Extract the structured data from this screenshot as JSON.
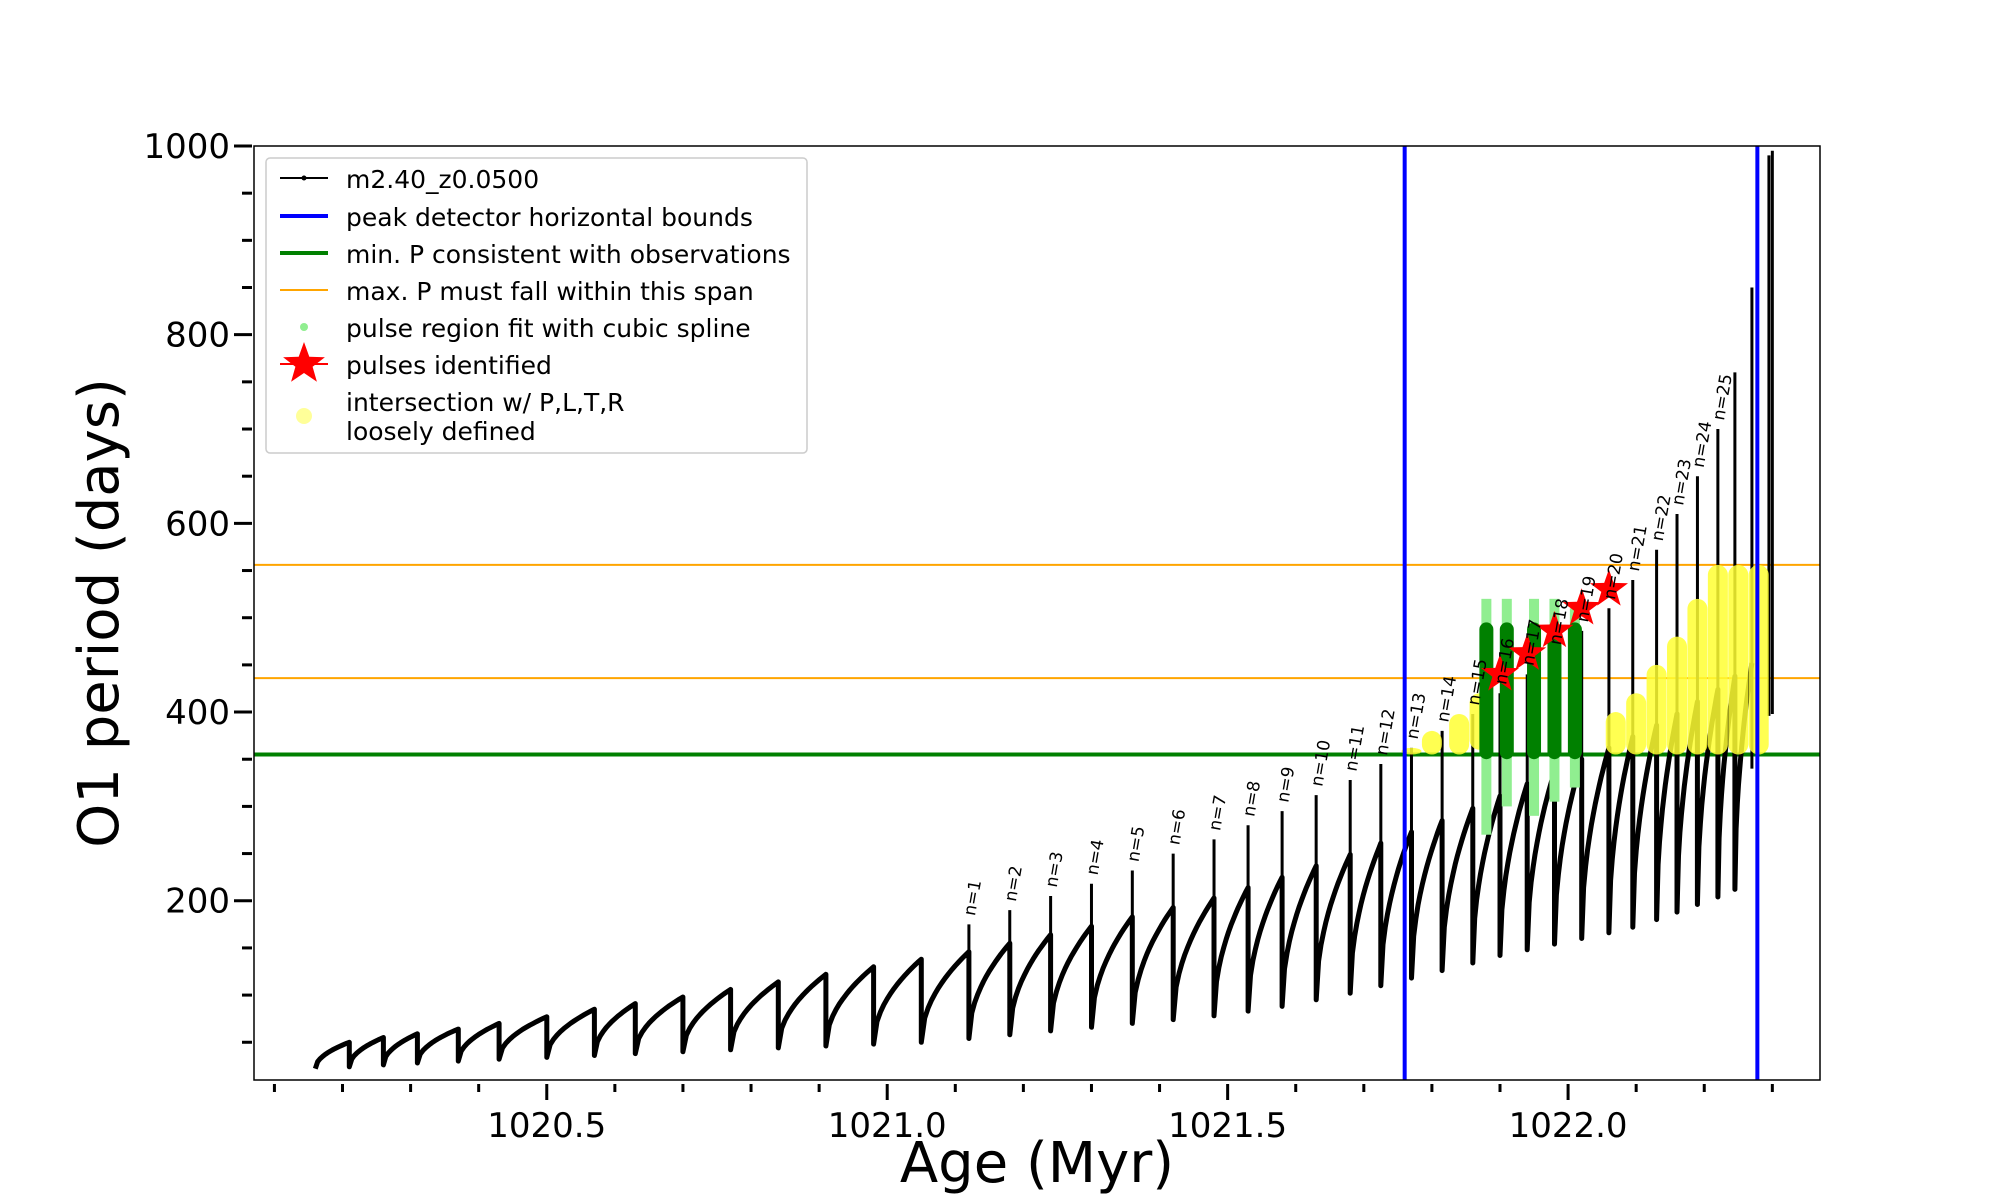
{
  "chart_data": {
    "type": "line",
    "xlabel": "Age (Myr)",
    "ylabel": "O1 period (days)",
    "xlim": [
      1020.07,
      1022.37
    ],
    "ylim": [
      10,
      1000
    ],
    "x_major_ticks": [
      1020.5,
      1021.0,
      1021.5,
      1022.0
    ],
    "x_tick_labels": [
      "1020.5",
      "1021.0",
      "1021.5",
      "1022.0"
    ],
    "y_major_ticks": [
      200,
      400,
      600,
      800,
      1000
    ],
    "y_tick_labels": [
      "200",
      "400",
      "600",
      "800",
      "1000"
    ],
    "series": [
      {
        "name": "m2.40_z0.0500",
        "color": "#000000",
        "description_values": "pulse cycles (sawtooth)",
        "cycles": [
          {
            "start": 1020.16,
            "end": 1020.21,
            "min": 22,
            "max": 50
          },
          {
            "start": 1020.21,
            "end": 1020.26,
            "min": 24,
            "max": 55
          },
          {
            "start": 1020.26,
            "end": 1020.31,
            "min": 26,
            "max": 59
          },
          {
            "start": 1020.31,
            "end": 1020.37,
            "min": 28,
            "max": 64
          },
          {
            "start": 1020.37,
            "end": 1020.43,
            "min": 30,
            "max": 70
          },
          {
            "start": 1020.43,
            "end": 1020.5,
            "min": 32,
            "max": 77
          },
          {
            "start": 1020.5,
            "end": 1020.57,
            "min": 34,
            "max": 85
          },
          {
            "start": 1020.57,
            "end": 1020.63,
            "min": 36,
            "max": 91
          },
          {
            "start": 1020.63,
            "end": 1020.7,
            "min": 38,
            "max": 98
          },
          {
            "start": 1020.7,
            "end": 1020.77,
            "min": 40,
            "max": 106
          },
          {
            "start": 1020.77,
            "end": 1020.84,
            "min": 42,
            "max": 114
          },
          {
            "start": 1020.84,
            "end": 1020.91,
            "min": 44,
            "max": 122
          },
          {
            "start": 1020.91,
            "end": 1020.98,
            "min": 46,
            "max": 130
          },
          {
            "start": 1020.98,
            "end": 1021.05,
            "min": 48,
            "max": 138
          },
          {
            "start": 1021.05,
            "end": 1021.12,
            "min": 50,
            "max": 146
          },
          {
            "start": 1021.12,
            "end": 1021.18,
            "min": 54,
            "max": 155
          },
          {
            "start": 1021.18,
            "end": 1021.24,
            "min": 58,
            "max": 164
          },
          {
            "start": 1021.24,
            "end": 1021.3,
            "min": 62,
            "max": 173
          },
          {
            "start": 1021.3,
            "end": 1021.36,
            "min": 66,
            "max": 183
          },
          {
            "start": 1021.36,
            "end": 1021.42,
            "min": 70,
            "max": 193
          },
          {
            "start": 1021.42,
            "end": 1021.48,
            "min": 74,
            "max": 203
          },
          {
            "start": 1021.48,
            "end": 1021.53,
            "min": 78,
            "max": 214
          },
          {
            "start": 1021.53,
            "end": 1021.58,
            "min": 83,
            "max": 225
          },
          {
            "start": 1021.58,
            "end": 1021.63,
            "min": 88,
            "max": 237
          },
          {
            "start": 1021.63,
            "end": 1021.68,
            "min": 95,
            "max": 249
          },
          {
            "start": 1021.68,
            "end": 1021.725,
            "min": 102,
            "max": 261
          },
          {
            "start": 1021.725,
            "end": 1021.77,
            "min": 110,
            "max": 273
          },
          {
            "start": 1021.77,
            "end": 1021.815,
            "min": 118,
            "max": 285
          },
          {
            "start": 1021.815,
            "end": 1021.86,
            "min": 126,
            "max": 298
          },
          {
            "start": 1021.86,
            "end": 1021.9,
            "min": 134,
            "max": 311
          },
          {
            "start": 1021.9,
            "end": 1021.94,
            "min": 142,
            "max": 324
          },
          {
            "start": 1021.94,
            "end": 1021.98,
            "min": 148,
            "max": 337
          },
          {
            "start": 1021.98,
            "end": 1022.02,
            "min": 154,
            "max": 350
          },
          {
            "start": 1022.02,
            "end": 1022.06,
            "min": 160,
            "max": 362
          },
          {
            "start": 1022.06,
            "end": 1022.095,
            "min": 166,
            "max": 374
          },
          {
            "start": 1022.095,
            "end": 1022.13,
            "min": 172,
            "max": 386
          },
          {
            "start": 1022.13,
            "end": 1022.16,
            "min": 180,
            "max": 398
          },
          {
            "start": 1022.16,
            "end": 1022.19,
            "min": 188,
            "max": 411
          },
          {
            "start": 1022.19,
            "end": 1022.22,
            "min": 196,
            "max": 424
          },
          {
            "start": 1022.22,
            "end": 1022.245,
            "min": 204,
            "max": 438
          },
          {
            "start": 1022.245,
            "end": 1022.27,
            "min": 212,
            "max": 452
          }
        ],
        "spikes": [
          {
            "x": 1021.12,
            "y": 175
          },
          {
            "x": 1021.18,
            "y": 190
          },
          {
            "x": 1021.24,
            "y": 205
          },
          {
            "x": 1021.3,
            "y": 218
          },
          {
            "x": 1021.36,
            "y": 232
          },
          {
            "x": 1021.42,
            "y": 250
          },
          {
            "x": 1021.48,
            "y": 265
          },
          {
            "x": 1021.53,
            "y": 280
          },
          {
            "x": 1021.58,
            "y": 295
          },
          {
            "x": 1021.63,
            "y": 312
          },
          {
            "x": 1021.68,
            "y": 328
          },
          {
            "x": 1021.725,
            "y": 345
          },
          {
            "x": 1021.77,
            "y": 362
          },
          {
            "x": 1021.815,
            "y": 380
          },
          {
            "x": 1021.86,
            "y": 398
          },
          {
            "x": 1021.9,
            "y": 420
          },
          {
            "x": 1021.94,
            "y": 440
          },
          {
            "x": 1021.98,
            "y": 462
          },
          {
            "x": 1022.02,
            "y": 486
          },
          {
            "x": 1022.06,
            "y": 510
          },
          {
            "x": 1022.095,
            "y": 540
          },
          {
            "x": 1022.13,
            "y": 572
          },
          {
            "x": 1022.16,
            "y": 610
          },
          {
            "x": 1022.19,
            "y": 650
          },
          {
            "x": 1022.22,
            "y": 700
          },
          {
            "x": 1022.245,
            "y": 760
          },
          {
            "x": 1022.27,
            "y": 850
          },
          {
            "x": 1022.295,
            "y": 990
          },
          {
            "x": 1022.3,
            "y": 995
          }
        ]
      }
    ],
    "vertical_lines": [
      {
        "name": "peak detector horizontal bounds",
        "color": "#0000ff",
        "x": [
          1021.76,
          1022.278
        ]
      }
    ],
    "horizontal_lines": [
      {
        "name": "min. P consistent with observations",
        "color": "#008000",
        "y": 355
      },
      {
        "name": "max. P must fall within this span",
        "color": "#ffa500",
        "y": [
          436,
          556
        ]
      }
    ],
    "pulse_labels": [
      {
        "text": "n=1",
        "x": 1021.12,
        "y": 175
      },
      {
        "text": "n=2",
        "x": 1021.18,
        "y": 190
      },
      {
        "text": "n=3",
        "x": 1021.24,
        "y": 205
      },
      {
        "text": "n=4",
        "x": 1021.3,
        "y": 218
      },
      {
        "text": "n=5",
        "x": 1021.36,
        "y": 232
      },
      {
        "text": "n=6",
        "x": 1021.42,
        "y": 250
      },
      {
        "text": "n=7",
        "x": 1021.48,
        "y": 265
      },
      {
        "text": "n=8",
        "x": 1021.53,
        "y": 280
      },
      {
        "text": "n=9",
        "x": 1021.58,
        "y": 295
      },
      {
        "text": "n=10",
        "x": 1021.63,
        "y": 312
      },
      {
        "text": "n=11",
        "x": 1021.68,
        "y": 328
      },
      {
        "text": "n=12",
        "x": 1021.725,
        "y": 345
      },
      {
        "text": "n=13",
        "x": 1021.77,
        "y": 362
      },
      {
        "text": "n=14",
        "x": 1021.815,
        "y": 380
      },
      {
        "text": "n=15",
        "x": 1021.86,
        "y": 398
      },
      {
        "text": "n=16",
        "x": 1021.9,
        "y": 420
      },
      {
        "text": "n=17",
        "x": 1021.94,
        "y": 440
      },
      {
        "text": "n=18",
        "x": 1021.98,
        "y": 462
      },
      {
        "text": "n=19",
        "x": 1022.02,
        "y": 486
      },
      {
        "text": "n=20",
        "x": 1022.06,
        "y": 510
      },
      {
        "text": "n=21",
        "x": 1022.095,
        "y": 540
      },
      {
        "text": "n=22",
        "x": 1022.13,
        "y": 572
      },
      {
        "text": "n=23",
        "x": 1022.16,
        "y": 610
      },
      {
        "text": "n=24",
        "x": 1022.19,
        "y": 650
      },
      {
        "text": "n=25",
        "x": 1022.22,
        "y": 700
      }
    ],
    "pulses_identified": [
      {
        "x": 1021.9,
        "y": 440
      },
      {
        "x": 1021.94,
        "y": 462
      },
      {
        "x": 1021.98,
        "y": 486
      },
      {
        "x": 1022.02,
        "y": 510
      },
      {
        "x": 1022.06,
        "y": 530
      }
    ],
    "spline_fit_regions": [
      {
        "x": 1021.88,
        "y_min": 270,
        "y_max": 520
      },
      {
        "x": 1021.91,
        "y_min": 300,
        "y_max": 520
      },
      {
        "x": 1021.95,
        "y_min": 290,
        "y_max": 520
      },
      {
        "x": 1021.98,
        "y_min": 305,
        "y_max": 520
      },
      {
        "x": 1022.01,
        "y_min": 320,
        "y_max": 510
      }
    ],
    "green_bars": [
      {
        "x": 1021.88,
        "y_min": 350,
        "y_max": 495
      },
      {
        "x": 1021.91,
        "y_min": 350,
        "y_max": 495
      },
      {
        "x": 1021.95,
        "y_min": 350,
        "y_max": 495
      },
      {
        "x": 1021.98,
        "y_min": 350,
        "y_max": 495
      },
      {
        "x": 1022.01,
        "y_min": 350,
        "y_max": 495
      }
    ],
    "loose_intersections": [
      {
        "x": 1021.77,
        "y_min": 355,
        "y_max": 362
      },
      {
        "x": 1021.8,
        "y_min": 355,
        "y_max": 380
      },
      {
        "x": 1021.84,
        "y_min": 355,
        "y_max": 398
      },
      {
        "x": 1021.87,
        "y_min": 360,
        "y_max": 420
      },
      {
        "x": 1022.07,
        "y_min": 355,
        "y_max": 400
      },
      {
        "x": 1022.1,
        "y_min": 355,
        "y_max": 420
      },
      {
        "x": 1022.13,
        "y_min": 355,
        "y_max": 450
      },
      {
        "x": 1022.16,
        "y_min": 355,
        "y_max": 480
      },
      {
        "x": 1022.19,
        "y_min": 355,
        "y_max": 520
      },
      {
        "x": 1022.22,
        "y_min": 355,
        "y_max": 556
      },
      {
        "x": 1022.25,
        "y_min": 355,
        "y_max": 556
      },
      {
        "x": 1022.28,
        "y_min": 355,
        "y_max": 556
      }
    ],
    "legend": {
      "placement": "top-left",
      "entries": [
        {
          "label": "m2.40_z0.0500",
          "symbol": "line-dot",
          "color": "#000000"
        },
        {
          "label": "peak detector horizontal bounds",
          "symbol": "line",
          "color": "#0000ff"
        },
        {
          "label": "min. P consistent with observations",
          "symbol": "line",
          "color": "#008000"
        },
        {
          "label": "max. P must fall within this span",
          "symbol": "thin-line",
          "color": "#ffa500"
        },
        {
          "label": "pulse region fit with cubic spline",
          "symbol": "dot",
          "color": "#90ee90"
        },
        {
          "label": "pulses identified",
          "symbol": "star",
          "color": "#ff0000"
        },
        {
          "label": "intersection w/ P,L,T,R",
          "label2": "loosely defined",
          "symbol": "circle",
          "color": "#ffff99"
        }
      ]
    }
  }
}
